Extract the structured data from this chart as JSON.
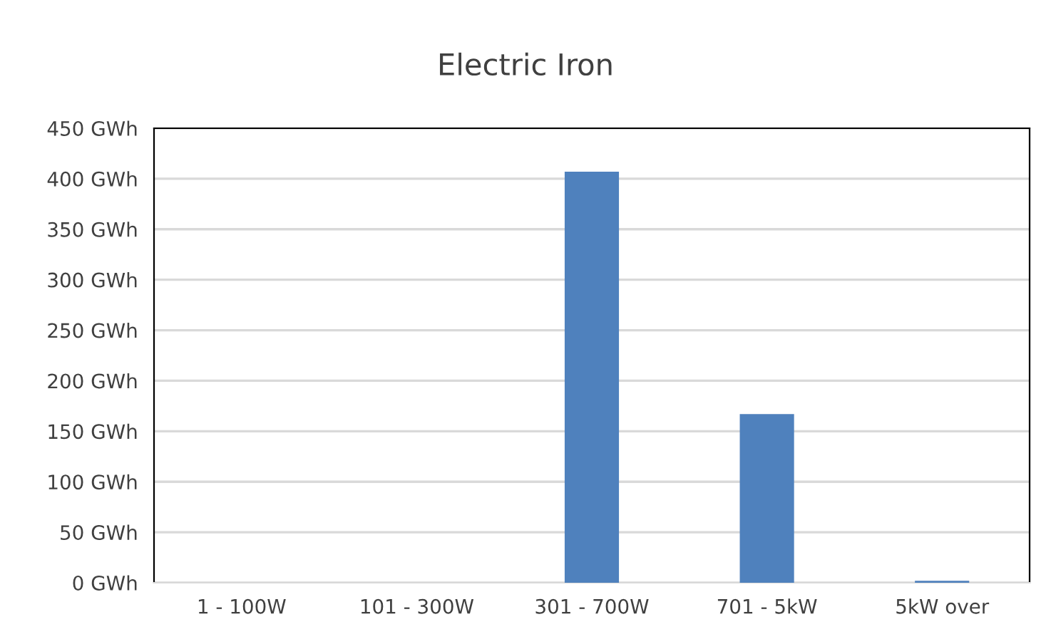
{
  "chart_data": {
    "type": "bar",
    "title": "Electric Iron",
    "categories": [
      "1 - 100W",
      "101 - 300W",
      "301 - 700W",
      "701 - 5kW",
      "5kW over"
    ],
    "values": [
      0,
      0,
      407,
      167,
      2
    ],
    "color": "#4f81bd",
    "ylim": [
      0,
      450
    ],
    "yticks": [
      {
        "value": 0,
        "label": "0 GWh"
      },
      {
        "value": 50,
        "label": "50 GWh"
      },
      {
        "value": 100,
        "label": "100 GWh"
      },
      {
        "value": 150,
        "label": "150 GWh"
      },
      {
        "value": 200,
        "label": "200 GWh"
      },
      {
        "value": 250,
        "label": "250 GWh"
      },
      {
        "value": 300,
        "label": "300 GWh"
      },
      {
        "value": 350,
        "label": "350 GWh"
      },
      {
        "value": 400,
        "label": "400 GWh"
      },
      {
        "value": 450,
        "label": "450 GWh"
      }
    ],
    "grid": "y"
  }
}
